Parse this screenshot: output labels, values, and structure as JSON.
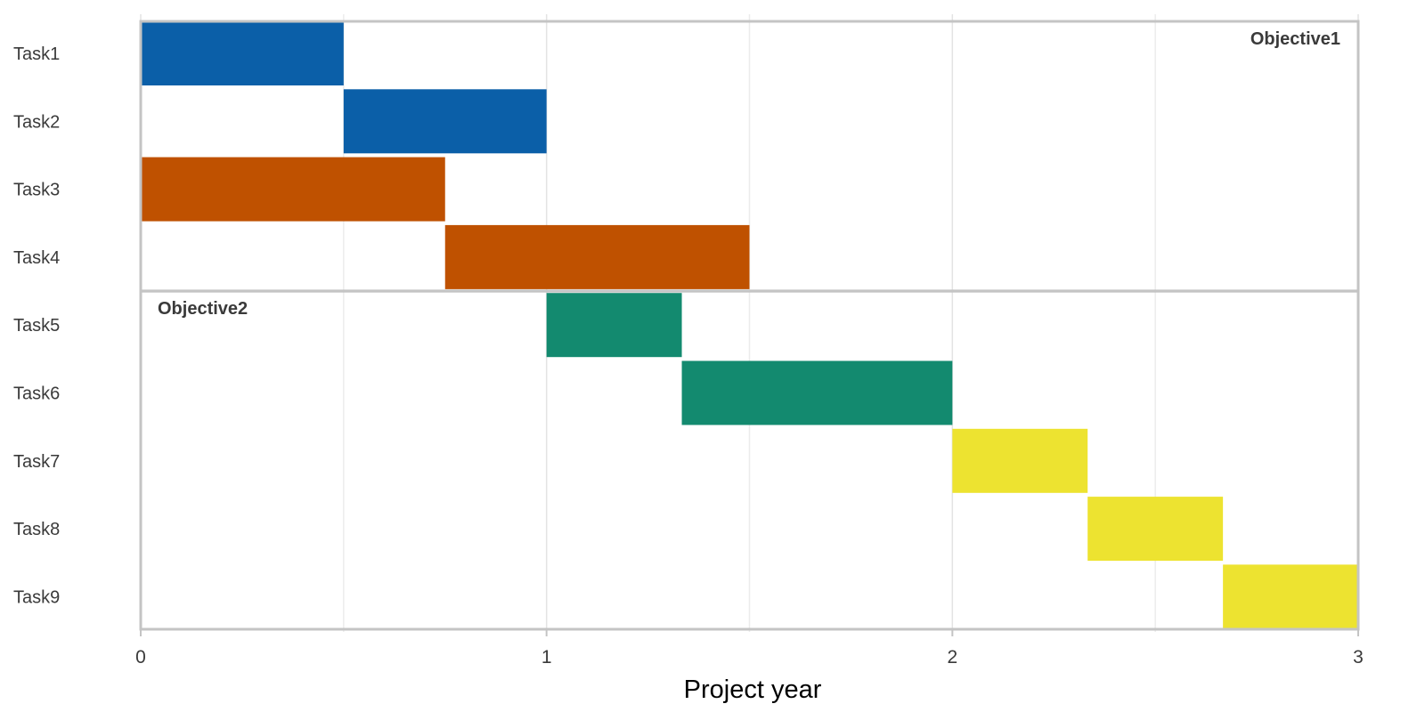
{
  "chart_data": {
    "type": "gantt",
    "xlabel": "Project year",
    "xlim": [
      0,
      3
    ],
    "x_ticks": [
      0,
      1,
      2,
      3
    ],
    "grid": true,
    "tasks": [
      {
        "name": "Task1",
        "start": 0.0,
        "end": 0.5,
        "objective": "Objective1",
        "color": "#0b5fa8"
      },
      {
        "name": "Task2",
        "start": 0.5,
        "end": 1.0,
        "objective": "Objective1",
        "color": "#0b5fa8"
      },
      {
        "name": "Task3",
        "start": 0.0,
        "end": 0.75,
        "objective": "Objective1",
        "color": "#bf5100"
      },
      {
        "name": "Task4",
        "start": 0.75,
        "end": 1.5,
        "objective": "Objective1",
        "color": "#bf5100"
      },
      {
        "name": "Task5",
        "start": 1.0,
        "end": 1.3333,
        "objective": "Objective2",
        "color": "#138a6f"
      },
      {
        "name": "Task6",
        "start": 1.3333,
        "end": 2.0,
        "objective": "Objective2",
        "color": "#138a6f"
      },
      {
        "name": "Task7",
        "start": 2.0,
        "end": 2.3333,
        "objective": "Objective2",
        "color": "#ede330"
      },
      {
        "name": "Task8",
        "start": 2.3333,
        "end": 2.6667,
        "objective": "Objective2",
        "color": "#ede330"
      },
      {
        "name": "Task9",
        "start": 2.6667,
        "end": 3.0,
        "objective": "Objective2",
        "color": "#ede330"
      }
    ],
    "groups": [
      {
        "label": "Objective1",
        "tasks": [
          "Task1",
          "Task2",
          "Task3",
          "Task4"
        ],
        "label_position": "top-right"
      },
      {
        "label": "Objective2",
        "tasks": [
          "Task5",
          "Task6",
          "Task7",
          "Task8",
          "Task9"
        ],
        "label_position": "top-left"
      }
    ]
  }
}
